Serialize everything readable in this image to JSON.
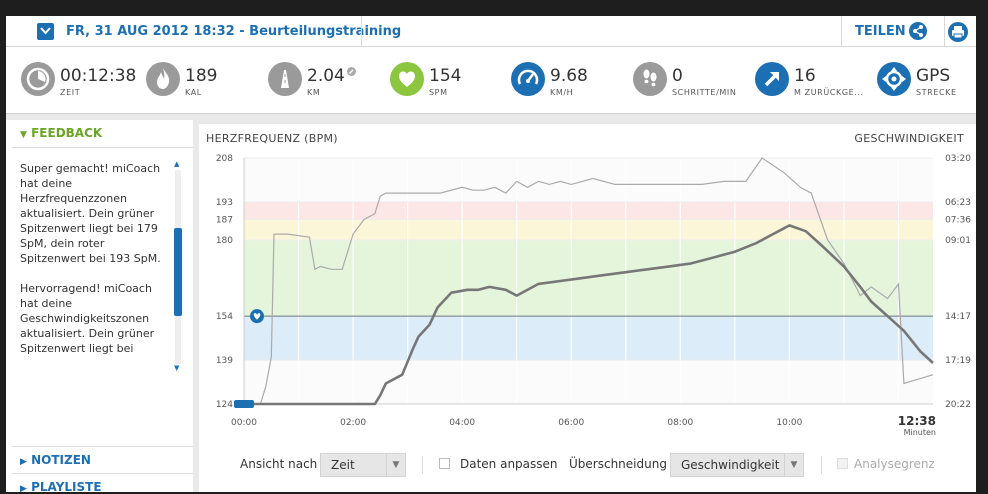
{
  "header": {
    "title": "FR, 31 AUG 2012 18:32 - Beurteilungstraining",
    "share_label": "TEILEN"
  },
  "stats": [
    {
      "icon": "stopwatch-icon",
      "value": "00:12:38",
      "label": "ZEIT",
      "color": "#9a9a9a"
    },
    {
      "icon": "flame-icon",
      "value": "189",
      "label": "KAL",
      "color": "#9a9a9a"
    },
    {
      "icon": "road-icon",
      "value": "2.04",
      "label": "KM",
      "color": "#9a9a9a"
    },
    {
      "icon": "heart-icon",
      "value": "154",
      "label": "SPM",
      "color": "#8cc63f"
    },
    {
      "icon": "speedometer-icon",
      "value": "9.68",
      "label": "KM/H",
      "color": "#1d6fb3"
    },
    {
      "icon": "footprints-icon",
      "value": "0",
      "label": "SCHRITTE/MIN",
      "color": "#9a9a9a"
    },
    {
      "icon": "arrow-up-right-icon",
      "value": "16",
      "label": "M ZURÜCKGE...",
      "color": "#1d6fb3"
    },
    {
      "icon": "gps-icon",
      "value": "GPS",
      "label": "STRECKE",
      "color": "#1d6fb3"
    }
  ],
  "sidebar": {
    "feedback_title": "FEEDBACK",
    "feedback_paragraphs": [
      "Super gemacht! miCoach hat deine Herzfrequenzzonen aktualisiert. Dein grüner Spitzenwert liegt bei 179 SpM, dein roter Spitzenwert bei 193 SpM.",
      "Hervorragend! miCoach hat deine Geschwindigkeitszonen aktualisiert. Dein grüner Spitzenwert liegt bei"
    ],
    "notes_label": "NOTIZEN",
    "playlist_label": "PLAYLISTE"
  },
  "controls": {
    "view_by_label": "Ansicht nach",
    "view_by_value": "Zeit",
    "adjust_label": "Daten anpassen",
    "overlay_label": "Überschneidung",
    "overlay_value": "Geschwindigkeit",
    "analysis_label": "Analysegrenzen"
  },
  "chart_data": {
    "type": "line",
    "title_left": "HERZFREQUENZ (BPM)",
    "title_right": "GESCHWINDIGKEIT",
    "x_ticks": [
      "00:00",
      "02:00",
      "04:00",
      "06:00",
      "08:00",
      "10:00"
    ],
    "x_end_label": "12:38",
    "x_end_unit": "Minuten",
    "xlim": [
      0,
      12.633
    ],
    "y_left_ticks": [
      208,
      193,
      187,
      180,
      154,
      139,
      124
    ],
    "ylim_left": [
      124,
      208
    ],
    "y_right_ticks": [
      "03:20",
      "06:23",
      "07:36",
      "09:01",
      "14:17",
      "17:19",
      "20:22"
    ],
    "zones": [
      {
        "from": 187,
        "to": 193,
        "color": "#fde6e6"
      },
      {
        "from": 180,
        "to": 187,
        "color": "#fcf6d8"
      },
      {
        "from": 154,
        "to": 180,
        "color": "#e4f5dc"
      },
      {
        "from": 139,
        "to": 154,
        "color": "#dcecf8"
      }
    ],
    "reference_line": 154,
    "series": [
      {
        "role": "heart-rate",
        "color": "#777777",
        "x": [
          0,
          0.5,
          1.0,
          2.4,
          2.5,
          2.6,
          2.9,
          3.1,
          3.2,
          3.4,
          3.55,
          3.8,
          4.1,
          4.3,
          4.5,
          4.8,
          5.0,
          5.4,
          5.8,
          6.2,
          6.6,
          7.0,
          7.4,
          7.8,
          8.2,
          8.6,
          9.0,
          9.4,
          9.7,
          9.9,
          10.0,
          10.3,
          10.6,
          11.0,
          11.3,
          11.5,
          11.8,
          12.1,
          12.4,
          12.633
        ],
        "y": [
          124,
          124,
          124,
          124,
          127,
          131,
          134,
          143,
          147,
          151,
          157,
          162,
          163,
          163,
          164,
          163,
          161,
          165,
          166,
          167,
          168,
          169,
          170,
          171,
          172,
          174,
          176,
          179,
          182,
          184,
          185,
          183,
          178,
          171,
          164,
          159,
          154,
          149,
          142,
          138
        ]
      },
      {
        "role": "speed",
        "color": "#aaaaaa",
        "x": [
          0,
          0.3,
          0.4,
          0.5,
          0.55,
          0.8,
          1.2,
          1.3,
          1.4,
          1.6,
          1.8,
          2.0,
          2.2,
          2.4,
          2.5,
          2.6,
          2.8,
          3.2,
          3.6,
          4.0,
          4.2,
          4.4,
          4.6,
          4.8,
          5.0,
          5.2,
          5.4,
          5.6,
          5.8,
          6.0,
          6.4,
          6.8,
          7.2,
          7.6,
          8.0,
          8.4,
          8.8,
          9.2,
          9.5,
          9.9,
          10.2,
          10.4,
          10.7,
          11.0,
          11.3,
          11.5,
          11.8,
          12.0,
          12.1,
          12.633
        ],
        "y": [
          124,
          124,
          130,
          140,
          182,
          182,
          181,
          170,
          171,
          170,
          170,
          182,
          187,
          189,
          195,
          196,
          196,
          196,
          196,
          198,
          197,
          197,
          198,
          196,
          200,
          198,
          200,
          199,
          200,
          199,
          201,
          199,
          199,
          199,
          199,
          199,
          200,
          200,
          208,
          203,
          198,
          196,
          180,
          172,
          161,
          164,
          160,
          165,
          131,
          134
        ]
      }
    ],
    "slider_x": 0
  }
}
